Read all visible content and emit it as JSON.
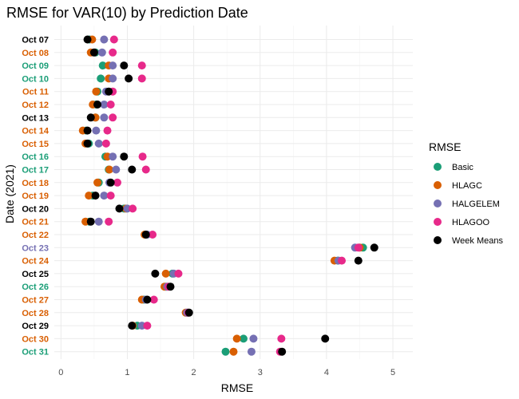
{
  "chart_data": {
    "type": "scatter",
    "title": "RMSE for VAR(10) by Prediction Date",
    "xlabel": "RMSE",
    "ylabel": "Date (2021)",
    "xlim": [
      -0.1,
      5.3
    ],
    "xticks": [
      0,
      1,
      2,
      3,
      4,
      5
    ],
    "grid": true,
    "legend": {
      "title": "RMSE",
      "placement": "right",
      "entries": [
        {
          "name": "Basic",
          "color": "#1b9e77"
        },
        {
          "name": "HLAGC",
          "color": "#d95f02"
        },
        {
          "name": "HALGELEM",
          "color": "#7570b3"
        },
        {
          "name": "HLAGOO",
          "color": "#e7298a"
        },
        {
          "name": "Week Means",
          "color": "#000000"
        }
      ]
    },
    "categories": [
      "Oct 07",
      "Oct 08",
      "Oct 09",
      "Oct 10",
      "Oct 11",
      "Oct 12",
      "Oct 13",
      "Oct 14",
      "Oct 15",
      "Oct 16",
      "Oct 17",
      "Oct 18",
      "Oct 19",
      "Oct 20",
      "Oct 21",
      "Oct 22",
      "Oct 23",
      "Oct 24",
      "Oct 25",
      "Oct 26",
      "Oct 27",
      "Oct 28",
      "Oct 29",
      "Oct 30",
      "Oct 31"
    ],
    "category_colors": [
      "#000000",
      "#d95f02",
      "#1b9e77",
      "#1b9e77",
      "#d95f02",
      "#d95f02",
      "#000000",
      "#d95f02",
      "#d95f02",
      "#1b9e77",
      "#1b9e77",
      "#d95f02",
      "#d95f02",
      "#000000",
      "#d95f02",
      "#d95f02",
      "#7570b3",
      "#d95f02",
      "#000000",
      "#1b9e77",
      "#d95f02",
      "#d95f02",
      "#000000",
      "#d95f02",
      "#1b9e77"
    ],
    "series": [
      {
        "name": "Basic",
        "color": "#1b9e77",
        "values": [
          0.43,
          0.52,
          0.63,
          0.6,
          0.55,
          0.53,
          0.52,
          0.38,
          0.42,
          0.67,
          0.72,
          0.57,
          0.48,
          0.95,
          0.43,
          1.28,
          4.55,
          4.17,
          1.68,
          1.58,
          1.25,
          1.9,
          1.15,
          2.75,
          2.48
        ]
      },
      {
        "name": "HLAGC",
        "color": "#d95f02",
        "values": [
          0.47,
          0.45,
          0.72,
          0.72,
          0.53,
          0.48,
          0.52,
          0.33,
          0.37,
          0.7,
          0.73,
          0.55,
          0.42,
          0.98,
          0.37,
          1.26,
          4.5,
          4.12,
          1.58,
          1.56,
          1.22,
          1.88,
          1.08,
          2.65,
          2.6
        ]
      },
      {
        "name": "HALGELEM",
        "color": "#7570b3",
        "values": [
          0.65,
          0.62,
          0.78,
          0.78,
          0.68,
          0.65,
          0.65,
          0.53,
          0.57,
          0.78,
          0.83,
          0.73,
          0.65,
          1.0,
          0.57,
          1.3,
          4.43,
          4.18,
          1.7,
          1.6,
          1.28,
          1.9,
          1.22,
          2.9,
          2.87
        ]
      },
      {
        "name": "HLAGOO",
        "color": "#e7298a",
        "values": [
          0.8,
          0.78,
          1.22,
          1.22,
          0.78,
          0.75,
          0.78,
          0.7,
          0.68,
          1.23,
          1.28,
          0.85,
          0.75,
          1.08,
          0.72,
          1.38,
          4.48,
          4.23,
          1.77,
          1.62,
          1.4,
          1.92,
          1.3,
          3.32,
          3.3
        ]
      },
      {
        "name": "Week Means",
        "color": "#000000",
        "values": [
          0.4,
          0.5,
          0.95,
          1.02,
          0.72,
          0.55,
          0.45,
          0.4,
          0.4,
          0.95,
          1.07,
          0.75,
          0.52,
          0.88,
          0.45,
          1.28,
          4.72,
          4.48,
          1.42,
          1.65,
          1.3,
          1.93,
          1.07,
          3.98,
          3.33
        ]
      }
    ]
  }
}
